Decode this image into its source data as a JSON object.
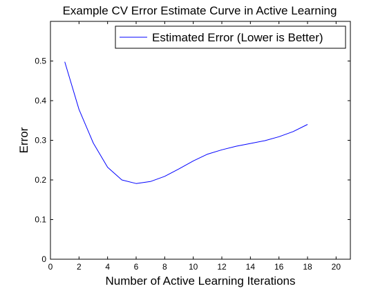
{
  "chart_data": {
    "type": "line",
    "title": "Example CV Error Estimate Curve in Active Learning",
    "xlabel": "Number of Active Learning Iterations",
    "ylabel": "Error",
    "xlim": [
      0,
      21
    ],
    "ylim": [
      0,
      0.6
    ],
    "xticks": [
      0,
      2,
      4,
      6,
      8,
      10,
      12,
      14,
      16,
      18,
      20
    ],
    "yticks": [
      0,
      0.1,
      0.2,
      0.3,
      0.4,
      0.5
    ],
    "xtick_labels": [
      "0",
      "2",
      "4",
      "6",
      "8",
      "10",
      "12",
      "14",
      "16",
      "18",
      "20"
    ],
    "ytick_labels": [
      "0",
      "0.1",
      "0.2",
      "0.3",
      "0.4",
      "0.5"
    ],
    "grid": false,
    "legend_position": "top-right",
    "series": [
      {
        "name": "Estimated Error (Lower is Better)",
        "color": "#0000ff",
        "x": [
          1,
          2,
          3,
          4,
          5,
          6,
          7,
          8,
          9,
          10,
          11,
          12,
          13,
          14,
          15,
          16,
          17,
          18
        ],
        "y": [
          0.498,
          0.378,
          0.293,
          0.232,
          0.2,
          0.191,
          0.196,
          0.209,
          0.228,
          0.248,
          0.265,
          0.276,
          0.285,
          0.292,
          0.299,
          0.309,
          0.322,
          0.34
        ]
      }
    ]
  }
}
